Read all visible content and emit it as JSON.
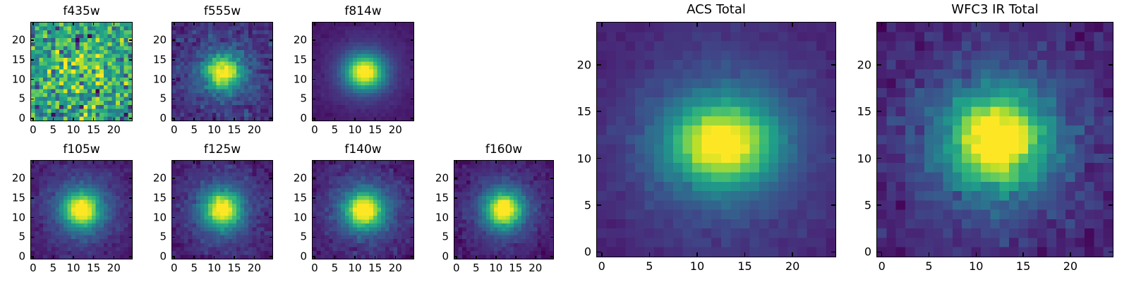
{
  "figure": {
    "background_color": "#ffffff",
    "text_color": "#000000",
    "axes_edge_color": "#000000"
  },
  "chart_data": {
    "type": "heatmap",
    "colormap": "viridis",
    "colormap_stops": [
      "#440154",
      "#482878",
      "#3e4989",
      "#31688e",
      "#26828e",
      "#1f9e89",
      "#35b779",
      "#6ece58",
      "#b5de2b",
      "#fde725"
    ],
    "grid_shape": [
      25,
      25
    ],
    "x_range": [
      0,
      24
    ],
    "y_range": [
      0,
      24
    ],
    "xticks": [
      0,
      5,
      10,
      15,
      20
    ],
    "yticks": [
      0,
      5,
      10,
      15,
      20
    ],
    "legend": "none",
    "grid_lines": "off",
    "panels": [
      {
        "title": "f435w",
        "description": "noisy cutout, faint central excess",
        "model": {
          "background": 0.6,
          "core_amp": 0.22,
          "core_sigma_x": 5.0,
          "core_sigma_y": 5.0,
          "center_x": 12.0,
          "center_y": 13.0,
          "halo_amp": 0.0,
          "halo_sigma": 6.0,
          "noise": 0.17,
          "spike_prob": 0.09,
          "spike_amp": -0.5,
          "seed": 435
        }
      },
      {
        "title": "f555w",
        "description": "compact bright source on noisy dark background",
        "model": {
          "background": 0.12,
          "core_amp": 0.72,
          "core_sigma_x": 3.0,
          "core_sigma_y": 2.8,
          "center_x": 12.3,
          "center_y": 11.8,
          "halo_amp": 0.25,
          "halo_sigma": 6.0,
          "noise": 0.055,
          "spike_prob": 0,
          "spike_amp": 0,
          "seed": 555
        }
      },
      {
        "title": "f814w",
        "description": "smooth bright source, low noise",
        "model": {
          "background": 0.05,
          "core_amp": 0.82,
          "core_sigma_x": 3.2,
          "core_sigma_y": 2.9,
          "center_x": 12.4,
          "center_y": 11.8,
          "halo_amp": 0.22,
          "halo_sigma": 6.5,
          "noise": 0.012,
          "spike_prob": 0,
          "spike_amp": 0,
          "seed": 814
        }
      },
      {
        "title": "f105w",
        "description": "smooth extended source",
        "model": {
          "background": 0.05,
          "core_amp": 0.75,
          "core_sigma_x": 3.0,
          "core_sigma_y": 3.0,
          "center_x": 12.0,
          "center_y": 12.0,
          "halo_amp": 0.32,
          "halo_sigma": 7.0,
          "noise": 0.03,
          "spike_prob": 0,
          "spike_amp": 0,
          "seed": 105
        }
      },
      {
        "title": "f125w",
        "description": "smooth extended source",
        "model": {
          "background": 0.05,
          "core_amp": 0.75,
          "core_sigma_x": 3.0,
          "core_sigma_y": 3.0,
          "center_x": 12.0,
          "center_y": 12.0,
          "halo_amp": 0.32,
          "halo_sigma": 7.0,
          "noise": 0.035,
          "spike_prob": 0,
          "spike_amp": 0,
          "seed": 125
        }
      },
      {
        "title": "f140w",
        "description": "smooth extended source",
        "model": {
          "background": 0.05,
          "core_amp": 0.78,
          "core_sigma_x": 3.1,
          "core_sigma_y": 3.0,
          "center_x": 12.3,
          "center_y": 11.8,
          "halo_amp": 0.32,
          "halo_sigma": 7.0,
          "noise": 0.035,
          "spike_prob": 0,
          "spike_amp": 0,
          "seed": 140
        }
      },
      {
        "title": "f160w",
        "description": "smooth extended source",
        "model": {
          "background": 0.05,
          "core_amp": 0.78,
          "core_sigma_x": 3.0,
          "core_sigma_y": 3.0,
          "center_x": 12.0,
          "center_y": 12.0,
          "halo_amp": 0.3,
          "halo_sigma": 6.5,
          "noise": 0.03,
          "spike_prob": 0,
          "spike_amp": 0,
          "seed": 160
        }
      },
      {
        "title": "ACS Total",
        "description": "stacked ACS image, slightly elongated bright core",
        "model": {
          "background": 0.07,
          "core_amp": 0.75,
          "core_sigma_x": 3.6,
          "core_sigma_y": 2.9,
          "center_x": 12.6,
          "center_y": 11.6,
          "halo_amp": 0.3,
          "halo_sigma": 7.5,
          "noise": 0.02,
          "spike_prob": 0,
          "spike_amp": 0,
          "seed": 7
        }
      },
      {
        "title": "WFC3 IR Total",
        "description": "stacked WFC3 IR image, bright core with mottled green halo",
        "model": {
          "background": 0.06,
          "core_amp": 0.8,
          "core_sigma_x": 3.3,
          "core_sigma_y": 3.2,
          "center_x": 12.2,
          "center_y": 11.9,
          "halo_amp": 0.34,
          "halo_sigma": 7.0,
          "noise": 0.045,
          "spike_prob": 0,
          "spike_amp": 0,
          "seed": 8
        }
      }
    ]
  }
}
